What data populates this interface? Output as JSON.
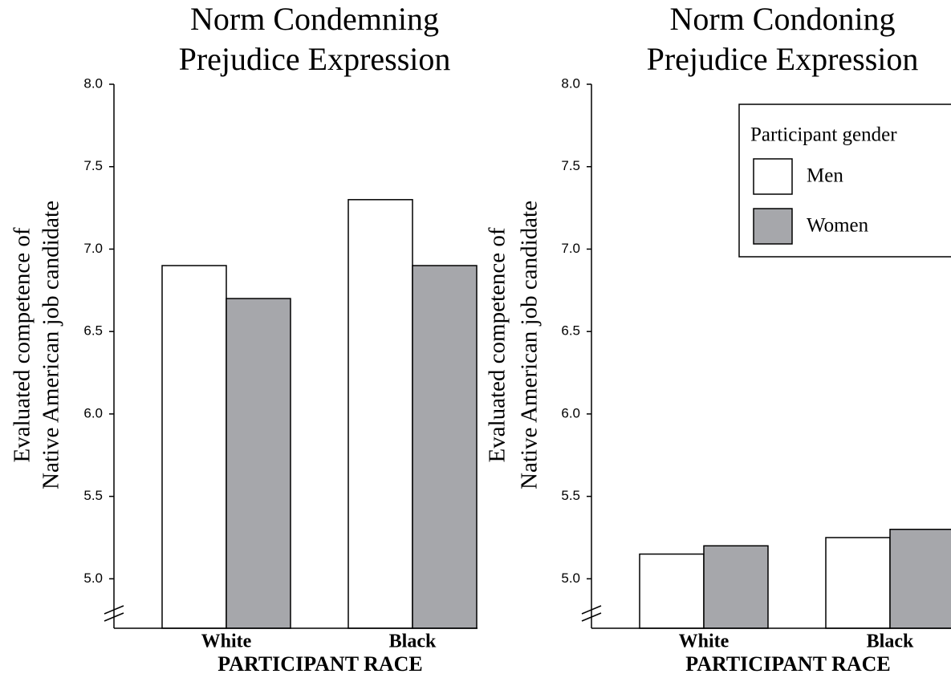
{
  "chart_data": [
    {
      "type": "bar",
      "title": [
        "Norm Condemning",
        "Prejudice Expression"
      ],
      "y_label": [
        "Evaluated competence of",
        "Native American job candidate"
      ],
      "x_label": "PARTICIPANT RACE",
      "categories": [
        "White",
        "Black"
      ],
      "series": [
        {
          "name": "Men",
          "color": "#ffffff",
          "values": [
            6.9,
            7.3
          ]
        },
        {
          "name": "Women",
          "color": "#a6a7ab",
          "values": [
            6.7,
            6.9
          ]
        }
      ],
      "ylim": [
        4.7,
        8.0
      ],
      "yticks": [
        {
          "value": 5,
          "label": "5.0"
        },
        {
          "value": 5.5,
          "label": "5.5"
        },
        {
          "value": 6,
          "label": "6.0"
        },
        {
          "value": 6.5,
          "label": "6.5"
        },
        {
          "value": 7,
          "label": "7.0"
        },
        {
          "value": 7.5,
          "label": "7.5"
        },
        {
          "value": 8,
          "label": "8.0"
        }
      ]
    },
    {
      "type": "bar",
      "title": [
        "Norm Condoning",
        "Prejudice Expression"
      ],
      "y_label": [
        "Evaluated competence of",
        "Native American job candidate"
      ],
      "x_label": "PARTICIPANT RACE",
      "categories": [
        "White",
        "Black"
      ],
      "series": [
        {
          "name": "Men",
          "color": "#ffffff",
          "values": [
            5.15,
            5.25
          ]
        },
        {
          "name": "Women",
          "color": "#a6a7ab",
          "values": [
            5.2,
            5.3
          ]
        }
      ],
      "ylim": [
        4.7,
        8.0
      ],
      "yticks": [
        {
          "value": 5,
          "label": "5.0"
        },
        {
          "value": 5.5,
          "label": "5.5"
        },
        {
          "value": 6,
          "label": "6.0"
        },
        {
          "value": 6.5,
          "label": "6.5"
        },
        {
          "value": 7,
          "label": "7.0"
        },
        {
          "value": 7.5,
          "label": "7.5"
        },
        {
          "value": 8,
          "label": "8.0"
        }
      ],
      "legend": "upper right",
      "legend_title": "Participant gender"
    }
  ]
}
